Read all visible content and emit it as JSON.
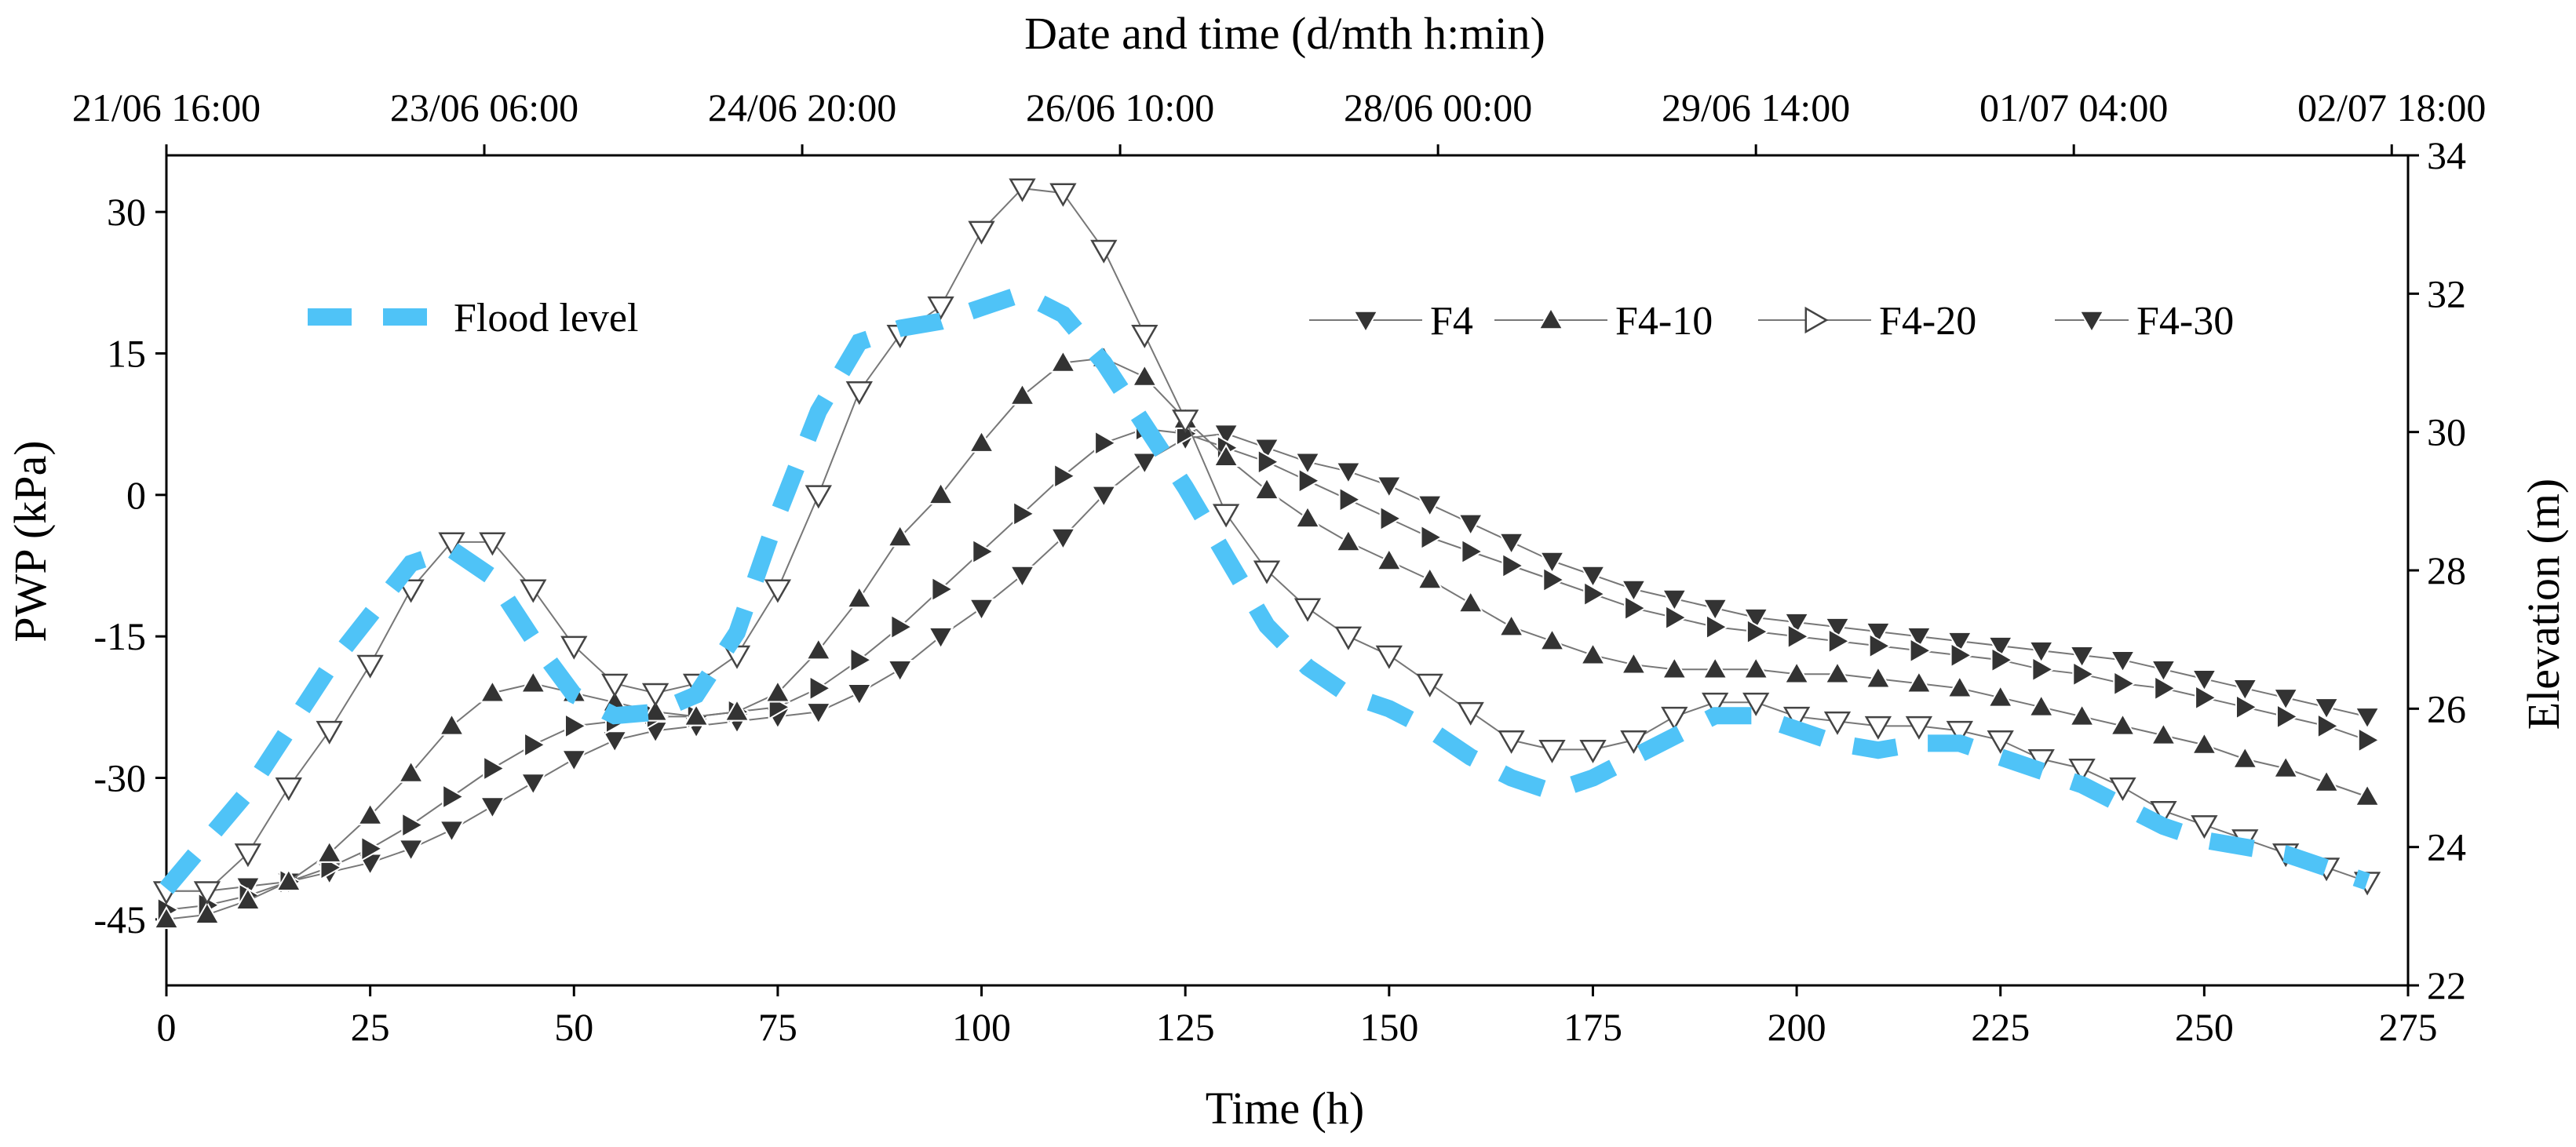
{
  "chart_data": {
    "type": "line",
    "xlabel": "Time (h)",
    "ylabel": "PWP (kPa)",
    "y2label": "Elevation (m)",
    "top_axis_title": "Date and time (d/mth h:min)",
    "xlim": [
      0,
      275
    ],
    "ylim": [
      -52,
      36
    ],
    "y2lim": [
      22,
      34
    ],
    "x_ticks": [
      0,
      25,
      50,
      75,
      100,
      125,
      150,
      175,
      200,
      225,
      250,
      275
    ],
    "y_ticks": [
      -45,
      -30,
      -15,
      0,
      15,
      30
    ],
    "y2_ticks": [
      22,
      24,
      26,
      28,
      30,
      32,
      34
    ],
    "top_ticks": [
      {
        "x": 0,
        "label": "21/06 16:00"
      },
      {
        "x": 39,
        "label": "23/06 06:00"
      },
      {
        "x": 78,
        "label": "24/06 20:00"
      },
      {
        "x": 117,
        "label": "26/06 10:00"
      },
      {
        "x": 156,
        "label": "28/06 00:00"
      },
      {
        "x": 195,
        "label": "29/06 14:00"
      },
      {
        "x": 234,
        "label": "01/07 04:00"
      },
      {
        "x": 273,
        "label": "02/07 18:00"
      }
    ],
    "flood_level": {
      "name": "Flood level",
      "axis": "right",
      "x": [
        0,
        10,
        20,
        30,
        35,
        40,
        45,
        50,
        55,
        60,
        65,
        70,
        75,
        80,
        85,
        90,
        95,
        100,
        105,
        110,
        115,
        120,
        125,
        130,
        135,
        140,
        145,
        150,
        155,
        160,
        165,
        170,
        175,
        180,
        185,
        190,
        195,
        200,
        205,
        210,
        215,
        220,
        225,
        230,
        235,
        240,
        245,
        250,
        255,
        260,
        265,
        270
      ],
      "values": [
        23.4,
        24.8,
        26.6,
        28.1,
        28.3,
        27.9,
        27.0,
        26.2,
        25.9,
        25.95,
        26.2,
        27.1,
        28.8,
        30.3,
        31.3,
        31.5,
        31.6,
        31.8,
        32.0,
        31.7,
        31.0,
        30.1,
        29.2,
        28.2,
        27.2,
        26.6,
        26.2,
        26.0,
        25.7,
        25.3,
        25.0,
        24.8,
        25.0,
        25.3,
        25.6,
        25.9,
        25.9,
        25.7,
        25.5,
        25.4,
        25.5,
        25.5,
        25.3,
        25.1,
        24.9,
        24.6,
        24.3,
        24.1,
        24.0,
        23.9,
        23.7,
        23.5
      ]
    },
    "series": [
      {
        "name": "F4",
        "marker": "triangle-down-open",
        "x": [
          0,
          5,
          10,
          15,
          20,
          25,
          30,
          35,
          40,
          45,
          50,
          55,
          60,
          65,
          70,
          75,
          80,
          85,
          90,
          95,
          100,
          105,
          110,
          115,
          120,
          125,
          130,
          135,
          140,
          145,
          150,
          155,
          160,
          165,
          170,
          175,
          180,
          185,
          190,
          195,
          200,
          205,
          210,
          215,
          220,
          225,
          230,
          235,
          240,
          245,
          250,
          255,
          260,
          265,
          270
        ],
        "values": [
          -42,
          -42,
          -38,
          -31,
          -25,
          -18,
          -10,
          -5,
          -5,
          -10,
          -16,
          -20,
          -21,
          -20,
          -17,
          -10,
          0,
          11,
          17,
          20,
          28,
          32.5,
          32,
          26,
          17,
          8,
          -2,
          -8,
          -12,
          -15,
          -17,
          -20,
          -23,
          -26,
          -27,
          -27,
          -26,
          -23.5,
          -22,
          -22,
          -23.5,
          -24,
          -24.5,
          -24.5,
          -25,
          -26,
          -28,
          -29,
          -31,
          -33.5,
          -35,
          -36.5,
          -38,
          -39.5,
          -41
        ]
      },
      {
        "name": "F4-10",
        "marker": "triangle-up-filled",
        "x": [
          0,
          5,
          10,
          15,
          20,
          25,
          30,
          35,
          40,
          45,
          50,
          55,
          60,
          65,
          70,
          75,
          80,
          85,
          90,
          95,
          100,
          105,
          110,
          115,
          120,
          125,
          130,
          135,
          140,
          145,
          150,
          155,
          160,
          165,
          170,
          175,
          180,
          185,
          190,
          195,
          200,
          205,
          210,
          215,
          220,
          225,
          230,
          235,
          240,
          245,
          250,
          255,
          260,
          265,
          270
        ],
        "values": [
          -45,
          -44.5,
          -43,
          -41,
          -38,
          -34,
          -29.5,
          -24.5,
          -21,
          -20,
          -21,
          -22,
          -23,
          -23.5,
          -23,
          -21,
          -16.5,
          -11,
          -4.5,
          0,
          5.5,
          10.5,
          14,
          14.5,
          12.5,
          8,
          4,
          0.5,
          -2.5,
          -5,
          -7,
          -9,
          -11.5,
          -14,
          -15.5,
          -17,
          -18,
          -18.5,
          -18.5,
          -18.5,
          -19,
          -19,
          -19.5,
          -20,
          -20.5,
          -21.5,
          -22.5,
          -23.5,
          -24.5,
          -25.5,
          -26.5,
          -28,
          -29,
          -30.5,
          -32
        ]
      },
      {
        "name": "F4-20",
        "marker": "triangle-right-filled",
        "x": [
          0,
          5,
          10,
          15,
          20,
          25,
          30,
          35,
          40,
          45,
          50,
          55,
          60,
          65,
          70,
          75,
          80,
          85,
          90,
          95,
          100,
          105,
          110,
          115,
          120,
          125,
          130,
          135,
          140,
          145,
          150,
          155,
          160,
          165,
          170,
          175,
          180,
          185,
          190,
          195,
          200,
          205,
          210,
          215,
          220,
          225,
          230,
          235,
          240,
          245,
          250,
          255,
          260,
          265,
          270
        ],
        "values": [
          -44,
          -43.5,
          -42.5,
          -41,
          -39.5,
          -37.5,
          -35,
          -32,
          -29,
          -26.5,
          -24.5,
          -24,
          -23.5,
          -23.5,
          -23,
          -22.5,
          -20.5,
          -17.5,
          -14,
          -10,
          -6,
          -2,
          2,
          5.5,
          7,
          6.5,
          5,
          3.5,
          1.5,
          -0.5,
          -2.5,
          -4.5,
          -6,
          -7.5,
          -9,
          -10.5,
          -12,
          -13,
          -14,
          -14.5,
          -15,
          -15.5,
          -16,
          -16.5,
          -17,
          -17.5,
          -18.5,
          -19,
          -20,
          -20.5,
          -21.5,
          -22.5,
          -23.5,
          -24.5,
          -26
        ]
      },
      {
        "name": "F4-30",
        "marker": "triangle-down-filled",
        "x": [
          0,
          5,
          10,
          15,
          20,
          25,
          30,
          35,
          40,
          45,
          50,
          55,
          60,
          65,
          70,
          75,
          80,
          85,
          90,
          95,
          100,
          105,
          110,
          115,
          120,
          125,
          130,
          135,
          140,
          145,
          150,
          155,
          160,
          165,
          170,
          175,
          180,
          185,
          190,
          195,
          200,
          205,
          210,
          215,
          220,
          225,
          230,
          235,
          240,
          245,
          250,
          255,
          260,
          265,
          270
        ],
        "values": [
          -42,
          -42,
          -41.5,
          -41,
          -40,
          -39,
          -37.5,
          -35.5,
          -33,
          -30.5,
          -28,
          -26,
          -25,
          -24.5,
          -24,
          -23.5,
          -23,
          -21,
          -18.5,
          -15,
          -12,
          -8.5,
          -4.5,
          0,
          3.5,
          6,
          6.5,
          5,
          3.5,
          2.5,
          1,
          -1,
          -3,
          -5,
          -7,
          -8.5,
          -10,
          -11,
          -12,
          -13,
          -13.5,
          -14,
          -14.5,
          -15,
          -15.5,
          -16,
          -16.5,
          -17,
          -17.5,
          -18.5,
          -19.5,
          -20.5,
          -21.5,
          -22.5,
          -23.5
        ]
      }
    ],
    "legend": [
      {
        "label": "Flood level",
        "position": "upper-left"
      },
      {
        "label": "F4",
        "position": "upper-right"
      },
      {
        "label": "F4-10",
        "position": "upper-right"
      },
      {
        "label": "F4-20",
        "position": "upper-right"
      },
      {
        "label": "F4-30",
        "position": "upper-right"
      }
    ]
  },
  "colors": {
    "flood": "#4FC3F7",
    "marker": "#333333",
    "line": "#777777",
    "axis": "#000000"
  }
}
